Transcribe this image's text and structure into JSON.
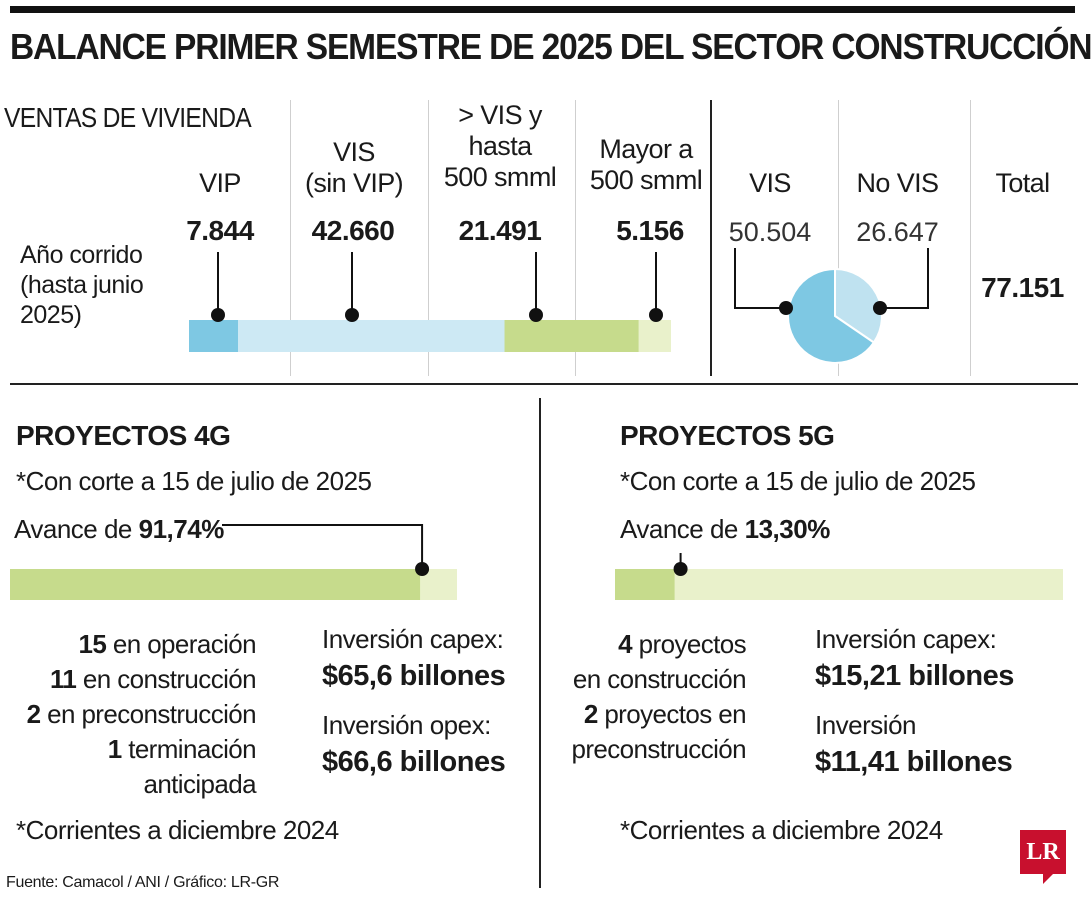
{
  "title": "BALANCE PRIMER SEMESTRE DE 2025 DEL SECTOR CONSTRUCCIÓN",
  "ventas": {
    "section_label": "VENTAS DE VIVIENDA",
    "period_label": [
      "Año corrido",
      "(hasta junio",
      "2025)"
    ],
    "categories": [
      {
        "head": [
          "VIP"
        ],
        "value": "7.844"
      },
      {
        "head": [
          "VIS",
          "(sin VIP)"
        ],
        "value": "42.660"
      },
      {
        "head": [
          "> VIS y",
          "hasta",
          "500 smml"
        ],
        "value": "21.491"
      },
      {
        "head": [
          "Mayor a",
          "500 smml"
        ],
        "value": "5.156"
      }
    ],
    "vis_head": "VIS",
    "vis_value": "50.504",
    "novis_head": "No VIS",
    "novis_value": "26.647",
    "total_head": "Total",
    "total_value": "77.151"
  },
  "chart_data": [
    {
      "type": "bar",
      "stacked": true,
      "orientation": "horizontal",
      "categories": [
        "VIP",
        "VIS (sin VIP)",
        "> VIS y hasta 500 smml",
        "Mayor a 500 smml"
      ],
      "values": [
        7844,
        42660,
        21491,
        5156
      ],
      "colors": [
        "#7ec8e3",
        "#cde9f4",
        "#c6db8c",
        "#e9f1cb"
      ]
    },
    {
      "type": "pie",
      "categories": [
        "VIS",
        "No VIS"
      ],
      "values": [
        50504,
        26647
      ],
      "colors": [
        "#7ec8e3",
        "#bfe2f0"
      ]
    },
    {
      "type": "bar",
      "orientation": "horizontal",
      "categories": [
        "Proyectos 4G"
      ],
      "values": [
        91.74
      ],
      "xlim": [
        0,
        100
      ],
      "colors": [
        "#c6db8c",
        "#e9f1cb"
      ]
    },
    {
      "type": "bar",
      "orientation": "horizontal",
      "categories": [
        "Proyectos 5G"
      ],
      "values": [
        13.3
      ],
      "xlim": [
        0,
        100
      ],
      "colors": [
        "#c6db8c",
        "#e9f1cb"
      ]
    }
  ],
  "g4": {
    "heading": "PROYECTOS 4G",
    "cutoff": "*Con corte a 15 de julio de 2025",
    "avance_prefix": "Avance de ",
    "avance_value": "91,74%",
    "stats": [
      {
        "num": "15",
        "text": " en operación"
      },
      {
        "num": "11",
        "text": " en construcción"
      },
      {
        "num": "2",
        "text": " en preconstrucción"
      },
      {
        "num": "1",
        "text": " terminación anticipada"
      }
    ],
    "inv1_label": "Inversión capex:",
    "inv1_value": "$65,6 billones",
    "inv2_label": "Inversión opex:",
    "inv2_value": "$66,6 billones",
    "note": "*Corrientes a diciembre 2024"
  },
  "g5": {
    "heading": "PROYECTOS 5G",
    "cutoff": "*Con corte a 15 de julio de 2025",
    "avance_prefix": "Avance de ",
    "avance_value": "13,30%",
    "stat1_num": "4",
    "stat1_text_a": " proyectos",
    "stat1_text_b": "en construcción",
    "stat2_num": "2",
    "stat2_text_a": " proyectos en",
    "stat2_text_b": "preconstrucción",
    "inv1_label": "Inversión capex:",
    "inv1_value": "$15,21 billones",
    "inv2_label": "Inversión",
    "inv2_value": "$11,41 billones",
    "note": "*Corrientes a diciembre 2024"
  },
  "source": "Fuente: Camacol / ANI / Gráfico: LR-GR",
  "logo_text": "LR"
}
